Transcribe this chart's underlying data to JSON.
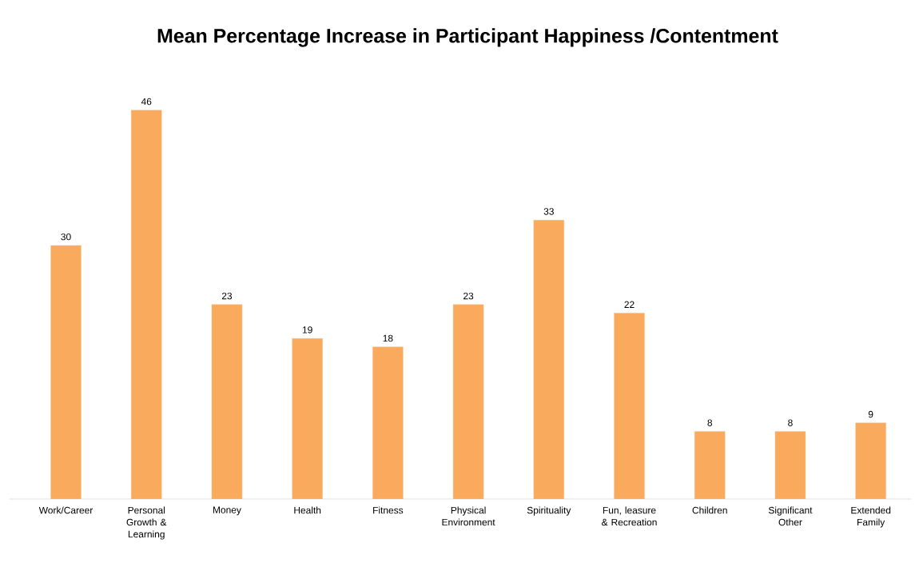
{
  "chart_data": {
    "type": "bar",
    "title": "Mean Percentage Increase in Participant Happiness /Contentment",
    "categories": [
      "Work/Career",
      "Personal Growth & Learning",
      "Money",
      "Health",
      "Fitness",
      "Physical Environment",
      "Spirituality",
      "Fun, leasure & Recreation",
      "Children",
      "Significant Other",
      "Extended Family"
    ],
    "values": [
      30,
      46,
      23,
      19,
      18,
      23,
      33,
      22,
      8,
      8,
      9
    ],
    "color": "#f9aa5c",
    "data_labels": true,
    "grid": false
  }
}
